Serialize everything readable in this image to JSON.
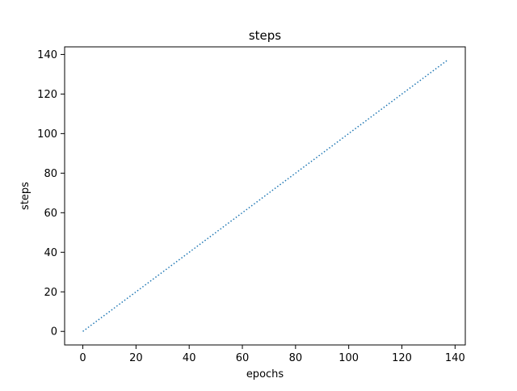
{
  "chart_data": {
    "type": "line",
    "title": "steps",
    "xlabel": "epochs",
    "ylabel": "steps",
    "xlim": [
      -6.85,
      143.85
    ],
    "ylim": [
      -6.85,
      143.85
    ],
    "xticks": [
      0,
      20,
      40,
      60,
      80,
      100,
      120,
      140
    ],
    "yticks": [
      0,
      20,
      40,
      60,
      80,
      100,
      120,
      140
    ],
    "grid": false,
    "series": [
      {
        "x": [
          0,
          137
        ],
        "y": [
          0,
          137
        ],
        "color": "#1f77b4",
        "line_style": "dotted"
      }
    ]
  }
}
